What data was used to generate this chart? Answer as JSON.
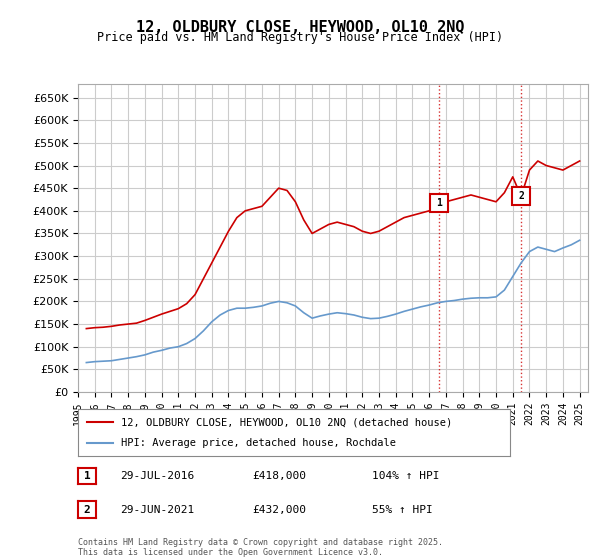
{
  "title": "12, OLDBURY CLOSE, HEYWOOD, OL10 2NQ",
  "subtitle": "Price paid vs. HM Land Registry's House Price Index (HPI)",
  "ylabel_prefix": "£",
  "ylim": [
    0,
    680000
  ],
  "yticks": [
    0,
    50000,
    100000,
    150000,
    200000,
    250000,
    300000,
    350000,
    400000,
    450000,
    500000,
    550000,
    600000,
    650000
  ],
  "xlim_start": 1995.0,
  "xlim_end": 2025.5,
  "marker1_x": 2016.57,
  "marker1_y": 418000,
  "marker1_label": "1",
  "marker2_x": 2021.49,
  "marker2_y": 432000,
  "marker2_label": "2",
  "vline1_x": 2016.57,
  "vline2_x": 2021.49,
  "red_color": "#cc0000",
  "blue_color": "#6699cc",
  "legend_line1": "12, OLDBURY CLOSE, HEYWOOD, OL10 2NQ (detached house)",
  "legend_line2": "HPI: Average price, detached house, Rochdale",
  "annotation1_num": "1",
  "annotation1_date": "29-JUL-2016",
  "annotation1_price": "£418,000",
  "annotation1_hpi": "104% ↑ HPI",
  "annotation2_num": "2",
  "annotation2_date": "29-JUN-2021",
  "annotation2_price": "£432,000",
  "annotation2_hpi": "55% ↑ HPI",
  "footnote": "Contains HM Land Registry data © Crown copyright and database right 2025.\nThis data is licensed under the Open Government Licence v3.0.",
  "bg_color": "#ffffff",
  "grid_color": "#cccccc",
  "hpi_red_data": {
    "years": [
      1995.5,
      1996.0,
      1996.5,
      1997.0,
      1997.5,
      1998.0,
      1998.5,
      1999.0,
      1999.5,
      2000.0,
      2000.5,
      2001.0,
      2001.5,
      2002.0,
      2002.5,
      2003.0,
      2003.5,
      2004.0,
      2004.5,
      2005.0,
      2005.5,
      2006.0,
      2006.5,
      2007.0,
      2007.5,
      2008.0,
      2008.5,
      2009.0,
      2009.5,
      2010.0,
      2010.5,
      2011.0,
      2011.5,
      2012.0,
      2012.5,
      2013.0,
      2013.5,
      2014.0,
      2014.5,
      2015.0,
      2015.5,
      2016.0,
      2016.5,
      2017.0,
      2017.5,
      2018.0,
      2018.5,
      2019.0,
      2019.5,
      2020.0,
      2020.5,
      2021.0,
      2021.5,
      2022.0,
      2022.5,
      2023.0,
      2023.5,
      2024.0,
      2024.5,
      2025.0
    ],
    "values": [
      140000,
      142000,
      143000,
      145000,
      148000,
      150000,
      152000,
      158000,
      165000,
      172000,
      178000,
      184000,
      195000,
      215000,
      250000,
      285000,
      320000,
      355000,
      385000,
      400000,
      405000,
      410000,
      430000,
      450000,
      445000,
      420000,
      380000,
      350000,
      360000,
      370000,
      375000,
      370000,
      365000,
      355000,
      350000,
      355000,
      365000,
      375000,
      385000,
      390000,
      395000,
      400000,
      418000,
      420000,
      425000,
      430000,
      435000,
      430000,
      425000,
      420000,
      440000,
      475000,
      432000,
      490000,
      510000,
      500000,
      495000,
      490000,
      500000,
      510000
    ]
  },
  "hpi_blue_data": {
    "years": [
      1995.5,
      1996.0,
      1996.5,
      1997.0,
      1997.5,
      1998.0,
      1998.5,
      1999.0,
      1999.5,
      2000.0,
      2000.5,
      2001.0,
      2001.5,
      2002.0,
      2002.5,
      2003.0,
      2003.5,
      2004.0,
      2004.5,
      2005.0,
      2005.5,
      2006.0,
      2006.5,
      2007.0,
      2007.5,
      2008.0,
      2008.5,
      2009.0,
      2009.5,
      2010.0,
      2010.5,
      2011.0,
      2011.5,
      2012.0,
      2012.5,
      2013.0,
      2013.5,
      2014.0,
      2014.5,
      2015.0,
      2015.5,
      2016.0,
      2016.5,
      2017.0,
      2017.5,
      2018.0,
      2018.5,
      2019.0,
      2019.5,
      2020.0,
      2020.5,
      2021.0,
      2021.5,
      2022.0,
      2022.5,
      2023.0,
      2023.5,
      2024.0,
      2024.5,
      2025.0
    ],
    "values": [
      65000,
      67000,
      68000,
      69000,
      72000,
      75000,
      78000,
      82000,
      88000,
      92000,
      97000,
      100000,
      107000,
      118000,
      135000,
      155000,
      170000,
      180000,
      185000,
      185000,
      187000,
      190000,
      196000,
      200000,
      197000,
      190000,
      175000,
      163000,
      168000,
      172000,
      175000,
      173000,
      170000,
      165000,
      162000,
      163000,
      167000,
      172000,
      178000,
      183000,
      188000,
      192000,
      197000,
      200000,
      202000,
      205000,
      207000,
      208000,
      208000,
      210000,
      225000,
      255000,
      285000,
      310000,
      320000,
      315000,
      310000,
      318000,
      325000,
      335000
    ]
  }
}
